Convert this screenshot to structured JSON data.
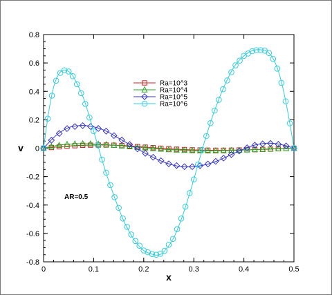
{
  "chart_data": {
    "type": "line",
    "xlabel": "x",
    "ylabel": "v",
    "xlim": [
      0,
      0.5
    ],
    "ylim": [
      -0.8,
      0.8
    ],
    "xticks": [
      "0",
      "0.1",
      "0.2",
      "0.3",
      "0.4",
      "0.5"
    ],
    "yticks": [
      "-0.8",
      "-0.6",
      "-0.4",
      "-0.2",
      "0",
      "0.2",
      "0.4",
      "0.6",
      "0.8"
    ],
    "annotation": "AR=0.5",
    "grid": false,
    "legend_position": "upper-center",
    "series": [
      {
        "name": "Ra=10^3",
        "color": "#cc2222",
        "marker": "square",
        "x": [
          0,
          0.025,
          0.05,
          0.075,
          0.1,
          0.125,
          0.15,
          0.175,
          0.2,
          0.225,
          0.25,
          0.275,
          0.3,
          0.325,
          0.35,
          0.375,
          0.4,
          0.425,
          0.45,
          0.475,
          0.5
        ],
        "y": [
          0,
          0.008,
          0.015,
          0.02,
          0.022,
          0.022,
          0.02,
          0.015,
          0.008,
          0.002,
          -0.004,
          -0.009,
          -0.012,
          -0.014,
          -0.015,
          -0.014,
          -0.012,
          -0.01,
          -0.007,
          -0.003,
          0
        ]
      },
      {
        "name": "Ra=10^4",
        "color": "#22aa22",
        "marker": "triangle",
        "x": [
          0,
          0.025,
          0.05,
          0.075,
          0.1,
          0.125,
          0.15,
          0.175,
          0.2,
          0.225,
          0.25,
          0.275,
          0.3,
          0.325,
          0.35,
          0.375,
          0.4,
          0.425,
          0.45,
          0.475,
          0.5
        ],
        "y": [
          0,
          0.018,
          0.028,
          0.032,
          0.03,
          0.025,
          0.018,
          0.01,
          0.003,
          -0.004,
          -0.01,
          -0.014,
          -0.017,
          -0.018,
          -0.018,
          -0.016,
          -0.013,
          -0.009,
          -0.005,
          -0.002,
          0
        ]
      },
      {
        "name": "Ra=10^5",
        "color": "#3333cc",
        "marker": "diamond",
        "x": [
          0,
          0.025,
          0.05,
          0.075,
          0.1,
          0.125,
          0.15,
          0.175,
          0.2,
          0.225,
          0.25,
          0.275,
          0.3,
          0.325,
          0.35,
          0.375,
          0.4,
          0.425,
          0.45,
          0.475,
          0.5
        ],
        "y": [
          0,
          0.09,
          0.145,
          0.16,
          0.15,
          0.12,
          0.07,
          0.02,
          -0.03,
          -0.075,
          -0.11,
          -0.13,
          -0.13,
          -0.115,
          -0.085,
          -0.045,
          -0.005,
          0.025,
          0.035,
          0.025,
          0
        ]
      },
      {
        "name": "Ra=10^6",
        "color": "#33ccdd",
        "marker": "circle",
        "x": [
          0,
          0.01,
          0.02,
          0.03,
          0.04,
          0.05,
          0.06,
          0.08,
          0.1,
          0.12,
          0.14,
          0.16,
          0.18,
          0.2,
          0.22,
          0.23,
          0.24,
          0.26,
          0.28,
          0.3,
          0.32,
          0.34,
          0.36,
          0.38,
          0.4,
          0.42,
          0.44,
          0.45,
          0.46,
          0.47,
          0.48,
          0.49,
          0.5
        ],
        "y": [
          0,
          0.25,
          0.43,
          0.52,
          0.55,
          0.54,
          0.5,
          0.35,
          0.12,
          -0.12,
          -0.33,
          -0.51,
          -0.64,
          -0.72,
          -0.75,
          -0.75,
          -0.73,
          -0.63,
          -0.45,
          -0.22,
          0.03,
          0.25,
          0.43,
          0.57,
          0.65,
          0.69,
          0.69,
          0.67,
          0.62,
          0.53,
          0.39,
          0.21,
          0
        ]
      }
    ]
  }
}
